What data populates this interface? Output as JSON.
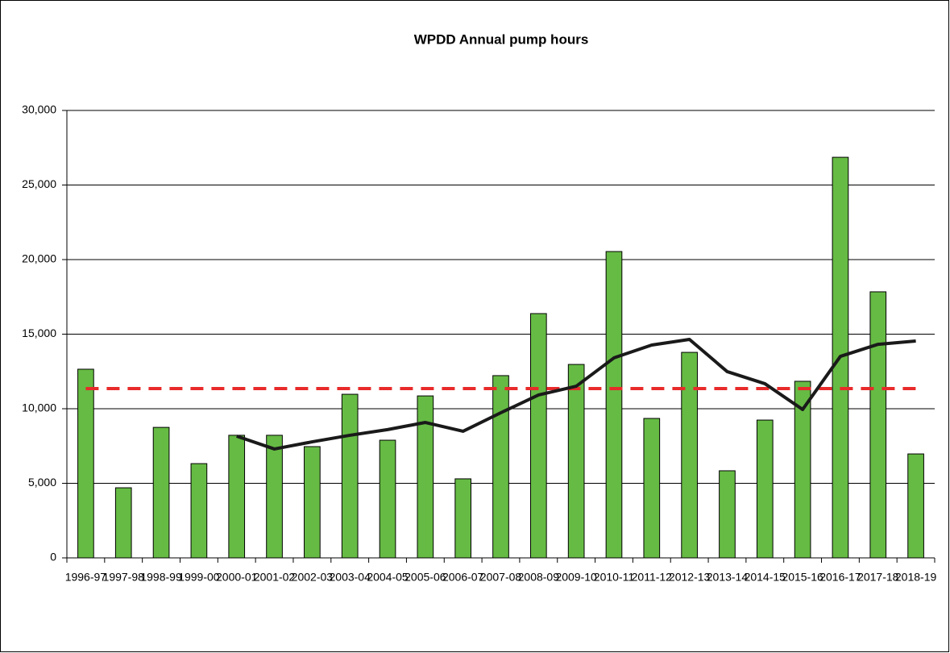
{
  "chart_data": {
    "type": "bar",
    "title": "WPDD Annual pump hours",
    "categories": [
      "1996-97",
      "1997-98",
      "1998-99",
      "1999-00",
      "2000-01",
      "2001-02",
      "2002-03",
      "2003-04",
      "2004-05",
      "2005-06",
      "2006-07",
      "2007-08",
      "2008-09",
      "2009-10",
      "2010-11",
      "2011-12",
      "2012-13",
      "2013-14",
      "2014-15",
      "2015-16",
      "2016-17",
      "2017-18",
      "2018-19"
    ],
    "series": [
      {
        "type": "bar",
        "color": "#66bb44",
        "values": [
          12650,
          4700,
          8750,
          6320,
          8220,
          8220,
          7460,
          10970,
          7890,
          10860,
          5300,
          12220,
          16380,
          12970,
          20540,
          9350,
          13780,
          5840,
          9240,
          11840,
          26860,
          17840,
          6970
        ]
      },
      {
        "type": "line",
        "color": "#e82a2a",
        "dashed": true,
        "values": [
          11350,
          11350,
          11350,
          11350,
          11350,
          11350,
          11350,
          11350,
          11350,
          11350,
          11350,
          11350,
          11350,
          11350,
          11350,
          11350,
          11350,
          11350,
          11350,
          11350,
          11350,
          11350,
          11350
        ]
      },
      {
        "type": "line",
        "color": "#1a1a1a",
        "dashed": false,
        "values": [
          null,
          null,
          null,
          null,
          8160,
          7300,
          7780,
          8220,
          8600,
          9080,
          8490,
          9730,
          10920,
          11510,
          13410,
          14270,
          14650,
          12490,
          11680,
          9950,
          13510,
          14320,
          14540
        ]
      }
    ],
    "ylim": [
      0,
      30000
    ],
    "yticks": [
      0,
      {
        "value": 5000,
        "label": "5,000"
      },
      {
        "value": 10000,
        "label": "10,000"
      },
      {
        "value": 15000,
        "label": "15,000"
      },
      {
        "value": 20000,
        "label": "20,000"
      },
      {
        "value": 25000,
        "label": "25,000"
      },
      {
        "value": 30000,
        "label": "30,000"
      }
    ],
    "grid": true
  }
}
